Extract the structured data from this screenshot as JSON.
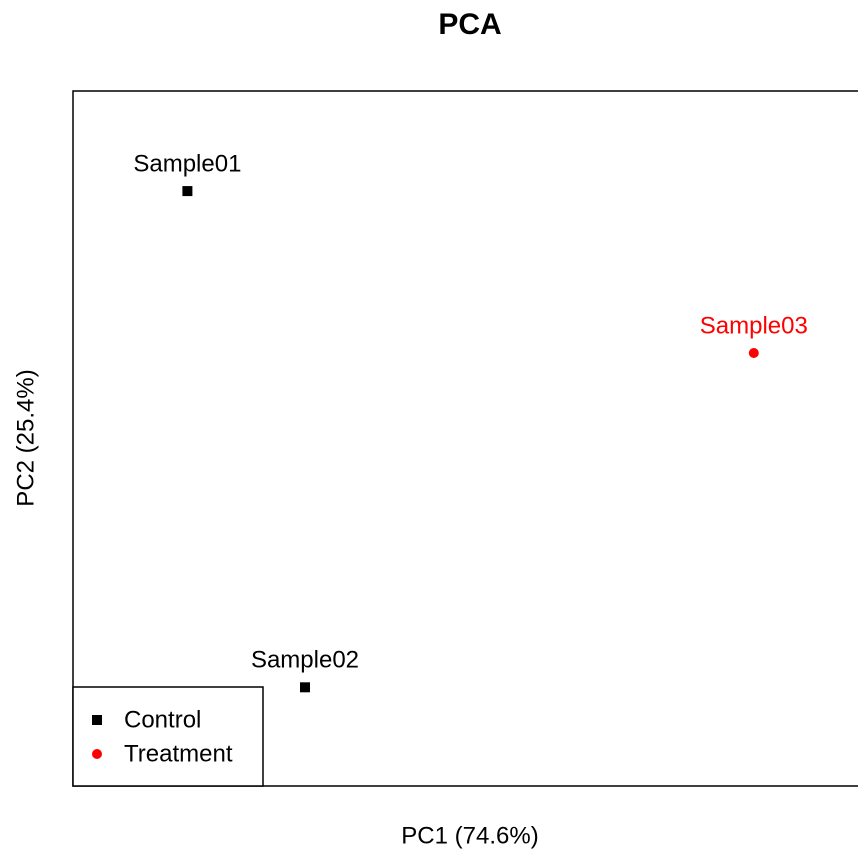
{
  "chart_data": {
    "type": "scatter",
    "title": "PCA",
    "x_label": "PC1 (74.6%)",
    "y_label": "PC2 (25.4%)",
    "xlim": [
      0,
      100
    ],
    "ylim": [
      0,
      100
    ],
    "legend_position": "bottom-left",
    "series": [
      {
        "name": "Control",
        "color": "#000000",
        "marker": "square",
        "x": [
          14.3,
          29.0
        ],
        "values": [
          85.6,
          14.2
        ],
        "point_labels": [
          "Sample01",
          "Sample02"
        ]
      },
      {
        "name": "Treatment",
        "color": "#ff0000",
        "marker": "circle",
        "x": [
          85.1
        ],
        "values": [
          62.3
        ],
        "point_labels": [
          "Sample03"
        ]
      }
    ]
  }
}
